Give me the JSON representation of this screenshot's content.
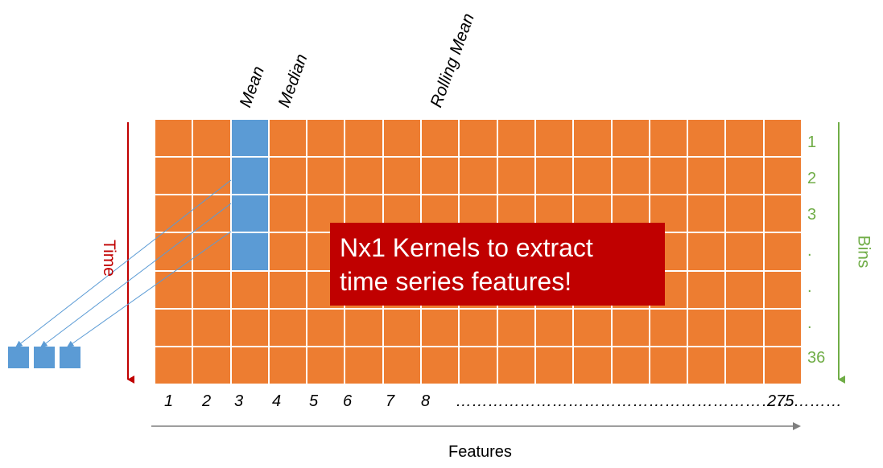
{
  "column_labels": {
    "col3": "Mean",
    "col4": "Median",
    "col8": "Rolling Mean"
  },
  "x_numbers": [
    "1",
    "2",
    "3",
    "4",
    "5",
    "6",
    "7",
    "8"
  ],
  "x_dots": "………………………………………………………………",
  "x_last": "275",
  "bins": [
    "1",
    "2",
    "3",
    ".",
    ".",
    ".",
    "36"
  ],
  "time_label": "Time",
  "bins_label": "Bins",
  "features_label": "Features",
  "banner": {
    "line1": "Nx1 Kernels to extract",
    "line2": "time series features!"
  },
  "colors": {
    "cell": "#ed7d31",
    "highlight": "#5b9bd5",
    "time": "#c00000",
    "bins": "#70ad47",
    "banner": "#c00000"
  },
  "grid": {
    "rows": 7,
    "cols": 17,
    "highlight_col": 3,
    "highlight_rows": 4
  }
}
